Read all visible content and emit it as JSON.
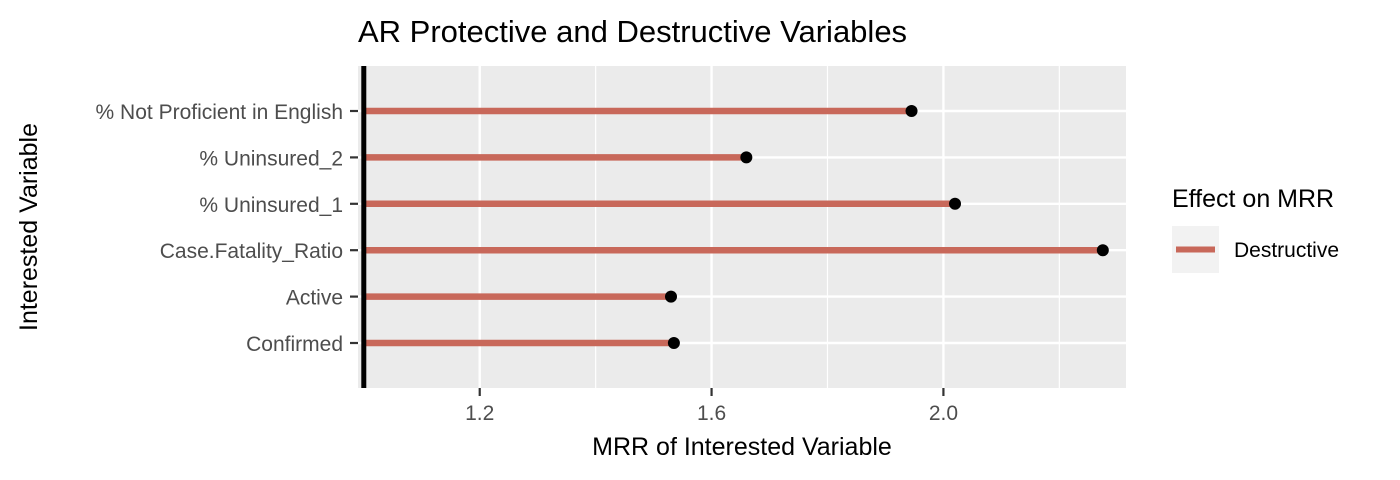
{
  "chart_data": {
    "type": "lollipop",
    "title": "AR Protective and Destructive Variables",
    "xlabel": "MRR of Interested Variable",
    "ylabel": "Interested Variable",
    "categories": [
      "% Not Proficient in English",
      "% Uninsured_2",
      "% Uninsured_1",
      "Case.Fatality_Ratio",
      "Active",
      "Confirmed"
    ],
    "series": [
      {
        "name": "Destructive",
        "color": "#c8685a",
        "baseline": 1.0,
        "values": [
          1.945,
          1.66,
          2.02,
          2.275,
          1.53,
          1.535
        ]
      }
    ],
    "reference_line": 1.0,
    "xlim": [
      0.99,
      2.315
    ],
    "xticks": [
      1.2,
      1.6,
      2.0
    ],
    "xtick_labels": [
      "1.2",
      "1.6",
      "2.0"
    ],
    "legend": {
      "title": "Effect on MRR",
      "placement": "right"
    },
    "grid": true,
    "point_color": "#000000",
    "panel_color": "#ebebeb"
  }
}
